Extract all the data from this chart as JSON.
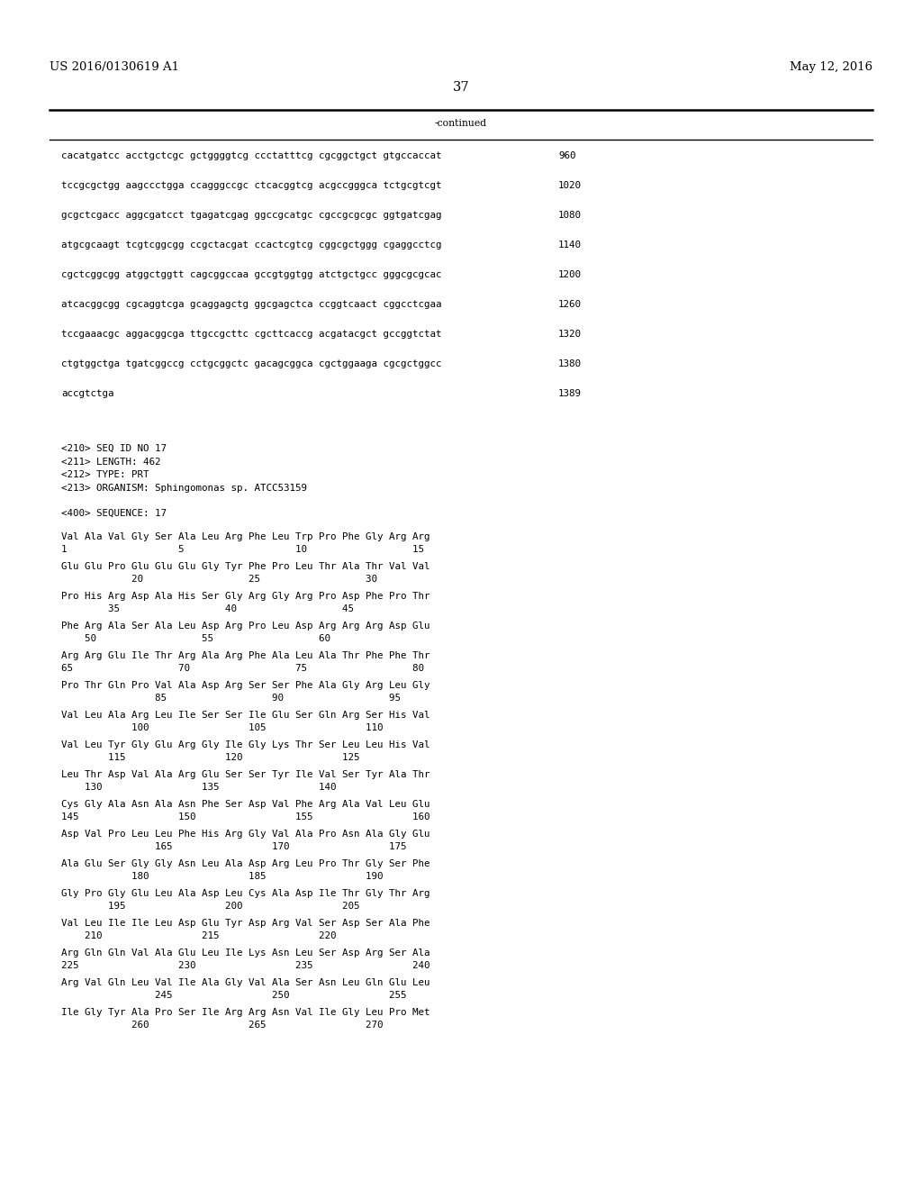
{
  "header_left": "US 2016/0130619 A1",
  "header_right": "May 12, 2016",
  "page_number": "37",
  "continued_label": "-continued",
  "background_color": "#ffffff",
  "text_color": "#000000",
  "font_size_header": 9.5,
  "font_size_body": 7.8,
  "font_size_page": 10.5,
  "nucleotide_lines": [
    [
      "cacatgatcc acctgctcgc gctggggtcg ccctatttcg cgcggctgct gtgccaccat",
      "960"
    ],
    [
      "tccgcgctgg aagccctgga ccagggccgc ctcacggtcg acgccgggca tctgcgtcgt",
      "1020"
    ],
    [
      "gcgctcgacc aggcgatcct tgagatcgag ggccgcatgc cgccgcgcgc ggtgatcgag",
      "1080"
    ],
    [
      "atgcgcaagt tcgtcggcgg ccgctacgat ccactcgtcg cggcgctggg cgaggcctcg",
      "1140"
    ],
    [
      "cgctcggcgg atggctggtt cagcggccaa gccgtggtgg atctgctgcc gggcgcgcac",
      "1200"
    ],
    [
      "atcacggcgg cgcaggtcga gcaggagctg ggcgagctca ccggtcaact cggcctcgaa",
      "1260"
    ],
    [
      "tccgaaacgc aggacggcga ttgccgcttc cgcttcaccg acgatacgct gccggtctat",
      "1320"
    ],
    [
      "ctgtggctga tgatcggccg cctgcggctc gacagcggca cgctggaaga cgcgctggcc",
      "1380"
    ],
    [
      "accgtctga",
      "1389"
    ]
  ],
  "metadata_lines": [
    "<210> SEQ ID NO 17",
    "<211> LENGTH: 462",
    "<212> TYPE: PRT",
    "<213> ORGANISM: Sphingomonas sp. ATCC53159"
  ],
  "sequence_label": "<400> SEQUENCE: 17",
  "protein_blocks": [
    {
      "amino_acids": "Val Ala Val Gly Ser Ala Leu Arg Phe Leu Trp Pro Phe Gly Arg Arg",
      "numbers": "1                   5                   10                  15"
    },
    {
      "amino_acids": "Glu Glu Pro Glu Glu Glu Gly Tyr Phe Pro Leu Thr Ala Thr Val Val",
      "numbers": "            20                  25                  30"
    },
    {
      "amino_acids": "Pro His Arg Asp Ala His Ser Gly Arg Gly Arg Pro Asp Phe Pro Thr",
      "numbers": "        35                  40                  45"
    },
    {
      "amino_acids": "Phe Arg Ala Ser Ala Leu Asp Arg Pro Leu Asp Arg Arg Arg Asp Glu",
      "numbers": "    50                  55                  60"
    },
    {
      "amino_acids": "Arg Arg Glu Ile Thr Arg Ala Arg Phe Ala Leu Ala Thr Phe Phe Thr",
      "numbers": "65                  70                  75                  80"
    },
    {
      "amino_acids": "Pro Thr Gln Pro Val Ala Asp Arg Ser Ser Phe Ala Gly Arg Leu Gly",
      "numbers": "                85                  90                  95"
    },
    {
      "amino_acids": "Val Leu Ala Arg Leu Ile Ser Ser Ile Glu Ser Gln Arg Ser His Val",
      "numbers": "            100                 105                 110"
    },
    {
      "amino_acids": "Val Leu Tyr Gly Glu Arg Gly Ile Gly Lys Thr Ser Leu Leu His Val",
      "numbers": "        115                 120                 125"
    },
    {
      "amino_acids": "Leu Thr Asp Val Ala Arg Glu Ser Ser Tyr Ile Val Ser Tyr Ala Thr",
      "numbers": "    130                 135                 140"
    },
    {
      "amino_acids": "Cys Gly Ala Asn Ala Asn Phe Ser Asp Val Phe Arg Ala Val Leu Glu",
      "numbers": "145                 150                 155                 160"
    },
    {
      "amino_acids": "Asp Val Pro Leu Leu Phe His Arg Gly Val Ala Pro Asn Ala Gly Glu",
      "numbers": "                165                 170                 175"
    },
    {
      "amino_acids": "Ala Glu Ser Gly Gly Asn Leu Ala Asp Arg Leu Pro Thr Gly Ser Phe",
      "numbers": "            180                 185                 190"
    },
    {
      "amino_acids": "Gly Pro Gly Glu Leu Ala Asp Leu Cys Ala Asp Ile Thr Gly Thr Arg",
      "numbers": "        195                 200                 205"
    },
    {
      "amino_acids": "Val Leu Ile Ile Leu Asp Glu Tyr Asp Arg Val Ser Asp Ser Ala Phe",
      "numbers": "    210                 215                 220"
    },
    {
      "amino_acids": "Arg Gln Gln Val Ala Glu Leu Ile Lys Asn Leu Ser Asp Arg Ser Ala",
      "numbers": "225                 230                 235                 240"
    },
    {
      "amino_acids": "Arg Val Gln Leu Val Ile Ala Gly Val Ala Ser Asn Leu Gln Glu Leu",
      "numbers": "                245                 250                 255"
    },
    {
      "amino_acids": "Ile Gly Tyr Ala Pro Ser Ile Arg Arg Asn Val Ile Gly Leu Pro Met",
      "numbers": "            260                 265                 270"
    }
  ]
}
